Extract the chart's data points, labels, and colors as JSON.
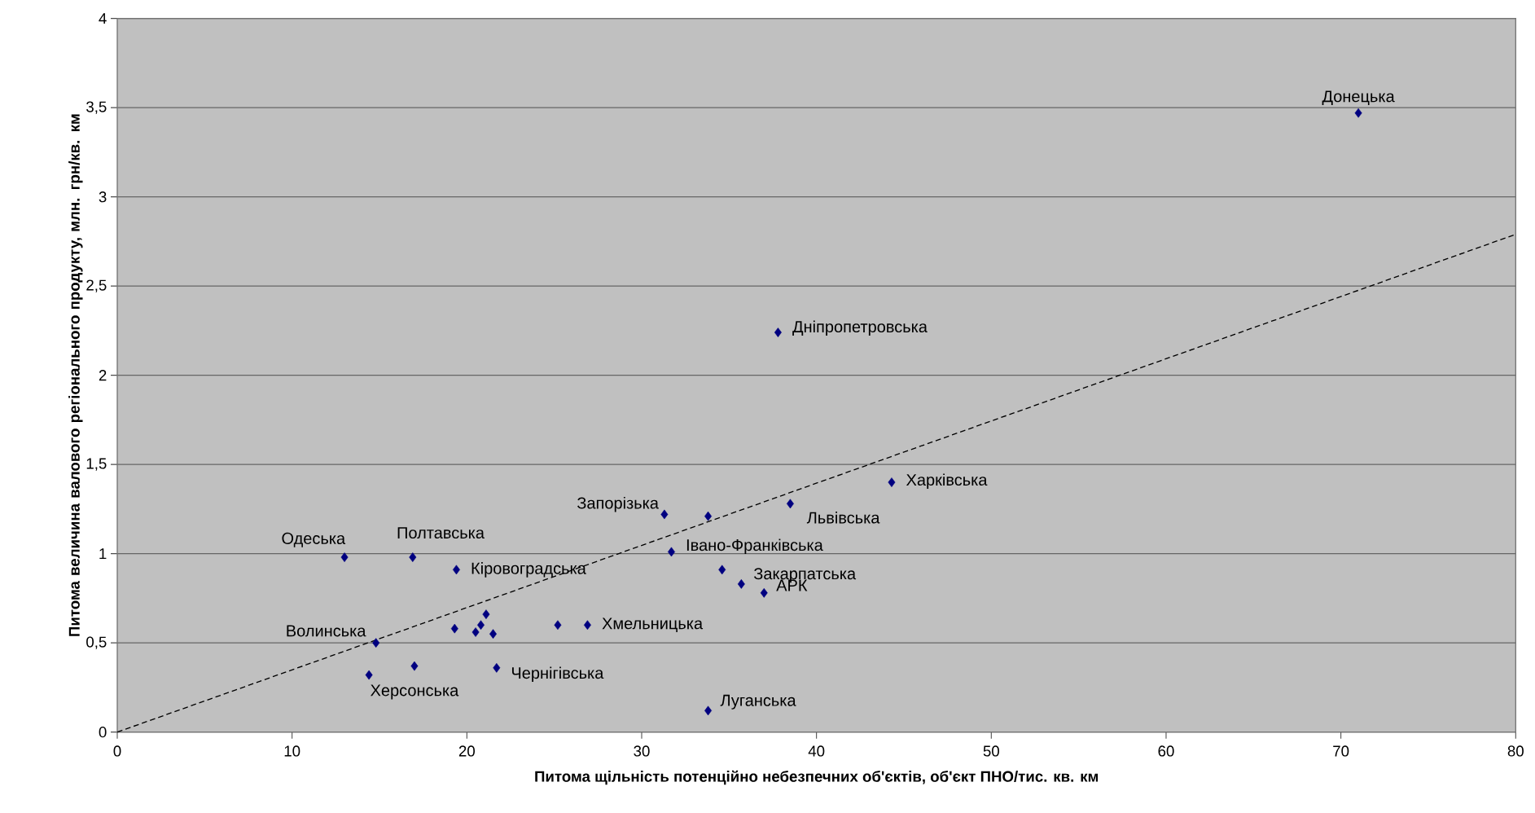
{
  "chart_data": {
    "type": "scatter",
    "xlabel": "Питома щільність потенційно небезпечних об'єктів, об'єкт ПНО/тис. кв. км",
    "ylabel": "Питома величина валового регіонального продукту, млн. грн/кв. км",
    "xlim": [
      0,
      80
    ],
    "xticks": [
      0,
      10,
      20,
      30,
      40,
      50,
      60,
      70,
      80
    ],
    "ylim": [
      0,
      4
    ],
    "yticks": [
      0,
      {
        "value": 0.5,
        "label": "0,5"
      },
      1,
      {
        "value": 1.5,
        "label": "1,5"
      },
      2,
      {
        "value": 2.5,
        "label": "2,5"
      },
      3,
      {
        "value": 3.5,
        "label": "3,5"
      },
      4
    ],
    "grid": "y",
    "marker": "diamond",
    "series": [
      {
        "color": "#000080",
        "x": [
          71.0,
          37.8,
          44.3,
          38.5,
          31.3,
          33.8,
          31.7,
          34.6,
          35.7,
          37.0,
          33.8,
          13.0,
          16.9,
          19.4,
          14.8,
          14.4,
          17.0,
          19.3,
          21.1,
          20.8,
          20.5,
          21.5,
          21.7,
          25.2,
          26.9
        ],
        "values": [
          3.47,
          2.24,
          1.4,
          1.28,
          1.22,
          1.21,
          1.01,
          0.91,
          0.83,
          0.78,
          0.12,
          0.98,
          0.98,
          0.91,
          0.5,
          0.32,
          0.37,
          0.58,
          0.66,
          0.6,
          0.56,
          0.55,
          0.36,
          0.6,
          0.6
        ]
      },
      {
        "type": "line",
        "color": "#000000",
        "line_style": "dashed",
        "marker": "none",
        "x": [
          0,
          80
        ],
        "values": [
          0,
          2.79
        ]
      }
    ],
    "annotations": [
      {
        "text": "Донецька",
        "x": 71.0,
        "y": 3.47
      },
      {
        "text": "Дніпропетровська",
        "x": 37.8,
        "y": 2.24
      },
      {
        "text": "Харківська",
        "x": 44.3,
        "y": 1.4
      },
      {
        "text": "Львівська",
        "x": 38.5,
        "y": 1.28
      },
      {
        "text": "Запорізька",
        "x": 31.3,
        "y": 1.22
      },
      {
        "text": "Івано-Франківська",
        "x": 31.7,
        "y": 1.01
      },
      {
        "text": "Закарпатська",
        "x": 35.7,
        "y": 0.83
      },
      {
        "text": "АРК",
        "x": 37.0,
        "y": 0.78
      },
      {
        "text": "Луганська",
        "x": 33.8,
        "y": 0.12
      },
      {
        "text": "Одеська",
        "x": 13.0,
        "y": 0.98
      },
      {
        "text": "Полтавська",
        "x": 16.9,
        "y": 0.98
      },
      {
        "text": "Кіровоградська",
        "x": 19.4,
        "y": 0.91
      },
      {
        "text": "Волинська",
        "x": 14.8,
        "y": 0.5
      },
      {
        "text": "Херсонська",
        "x": 17.0,
        "y": 0.37
      },
      {
        "text": "Чернігівська",
        "x": 21.7,
        "y": 0.36
      },
      {
        "text": "Хмельницька",
        "x": 26.9,
        "y": 0.6
      }
    ]
  }
}
